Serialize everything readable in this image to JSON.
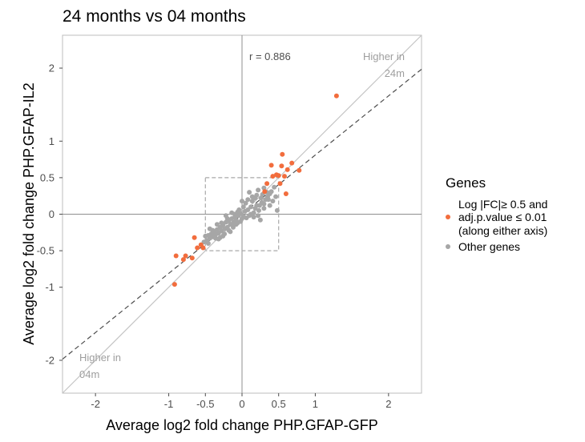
{
  "chart_data": {
    "type": "scatter",
    "title": "24 months vs 04 months",
    "xlabel": "Average log2 fold change PHP.GFAP-GFP",
    "ylabel": "Average log2 fold change PHP.GFAP-IL2",
    "xlim": [
      -2.45,
      2.45
    ],
    "ylim": [
      -2.45,
      2.45
    ],
    "x_ticks": [
      {
        "value": -2,
        "label": "-2"
      },
      {
        "value": -1,
        "label": "-1"
      },
      {
        "value": -0.5,
        "label": "-0.5"
      },
      {
        "value": 0,
        "label": "0"
      },
      {
        "value": 0.5,
        "label": "0.5"
      },
      {
        "value": 1,
        "label": "1"
      },
      {
        "value": 2,
        "label": "2"
      }
    ],
    "y_ticks": [
      {
        "value": -2,
        "label": "-2"
      },
      {
        "value": -1,
        "label": "-1"
      },
      {
        "value": -0.5,
        "label": "-0.5"
      },
      {
        "value": 0,
        "label": "0"
      },
      {
        "value": 0.5,
        "label": "0.5"
      },
      {
        "value": 1,
        "label": "1"
      },
      {
        "value": 2,
        "label": "2"
      }
    ],
    "annotations": {
      "correlation": "r = 0.886",
      "higher_24m": [
        "Higher in",
        "24m"
      ],
      "higher_04m": [
        "Higher in",
        "04m"
      ]
    },
    "reference_lines": {
      "identity_slope": 1,
      "fit_slope": 0.81,
      "threshold_box": [
        -0.5,
        0.5
      ]
    },
    "legend": {
      "title": "Genes",
      "position": "right",
      "entries": [
        {
          "label_lines": [
            "Log |FC|≥ 0.5 and",
            "adj.p.value ≤ 0.01",
            "(along either axis)"
          ],
          "color": "#f26d3d"
        },
        {
          "label_lines": [
            "Other genes"
          ],
          "color": "#a6a6a6"
        }
      ]
    },
    "colors": {
      "significant": "#f26d3d",
      "other": "#a6a6a6",
      "panel_border": "#bdbdbd",
      "zero_lines": "#8f8f8f"
    },
    "series": [
      {
        "name": "Log |FC|≥ 0.5 and adj.p.value ≤ 0.01 (along either axis)",
        "color": "#f26d3d",
        "points": [
          [
            1.29,
            1.62
          ],
          [
            0.55,
            0.82
          ],
          [
            0.68,
            0.7
          ],
          [
            0.4,
            0.67
          ],
          [
            0.54,
            0.66
          ],
          [
            0.62,
            0.61
          ],
          [
            0.78,
            0.6
          ],
          [
            0.47,
            0.54
          ],
          [
            0.42,
            0.52
          ],
          [
            0.5,
            0.53
          ],
          [
            0.58,
            0.52
          ],
          [
            0.52,
            0.42
          ],
          [
            0.34,
            0.42
          ],
          [
            0.6,
            0.28
          ],
          [
            0.31,
            0.31
          ],
          [
            -0.65,
            -0.32
          ],
          [
            -0.56,
            -0.42
          ],
          [
            -0.61,
            -0.46
          ],
          [
            -0.53,
            -0.46
          ],
          [
            -0.9,
            -0.57
          ],
          [
            -0.77,
            -0.57
          ],
          [
            -0.68,
            -0.6
          ],
          [
            -0.8,
            -0.62
          ],
          [
            -0.92,
            -0.96
          ]
        ]
      },
      {
        "name": "Other genes",
        "color": "#a6a6a6",
        "points": [
          [
            0.44,
            0.37
          ],
          [
            0.4,
            0.31
          ],
          [
            0.35,
            0.24
          ],
          [
            0.28,
            0.27
          ],
          [
            0.42,
            0.18
          ],
          [
            0.22,
            0.33
          ],
          [
            0.48,
            0.05
          ],
          [
            0.25,
            -0.08
          ],
          [
            0.3,
            0.08
          ],
          [
            0.38,
            0.12
          ],
          [
            0.32,
            0.2
          ],
          [
            0.18,
            0.22
          ],
          [
            0.2,
            0.12
          ],
          [
            0.27,
            0.16
          ],
          [
            0.14,
            0.18
          ],
          [
            0.23,
            0.05
          ],
          [
            0.12,
            0.1
          ],
          [
            0.16,
            0.02
          ],
          [
            0.05,
            0.15
          ],
          [
            0.08,
            0.06
          ],
          [
            0.1,
            -0.02
          ],
          [
            0.04,
            0.04
          ],
          [
            0.02,
            -0.03
          ],
          [
            -0.02,
            0.01
          ],
          [
            0.0,
            -0.06
          ],
          [
            -0.05,
            -0.02
          ],
          [
            -0.06,
            0.03
          ],
          [
            -0.08,
            -0.08
          ],
          [
            -0.1,
            -0.04
          ],
          [
            -0.12,
            -0.12
          ],
          [
            -0.14,
            -0.06
          ],
          [
            -0.16,
            -0.14
          ],
          [
            -0.18,
            -0.09
          ],
          [
            -0.2,
            -0.18
          ],
          [
            -0.22,
            -0.11
          ],
          [
            -0.24,
            -0.2
          ],
          [
            -0.26,
            -0.15
          ],
          [
            -0.28,
            -0.23
          ],
          [
            -0.3,
            -0.18
          ],
          [
            -0.32,
            -0.26
          ],
          [
            -0.34,
            -0.21
          ],
          [
            -0.36,
            -0.28
          ],
          [
            -0.38,
            -0.24
          ],
          [
            -0.4,
            -0.31
          ],
          [
            -0.42,
            -0.27
          ],
          [
            -0.44,
            -0.33
          ],
          [
            -0.46,
            -0.29
          ],
          [
            -0.48,
            -0.36
          ],
          [
            -0.5,
            -0.3
          ],
          [
            -0.52,
            -0.38
          ],
          [
            -0.36,
            -0.33
          ],
          [
            -0.3,
            -0.32
          ],
          [
            -0.24,
            -0.27
          ],
          [
            -0.18,
            -0.22
          ],
          [
            -0.12,
            -0.18
          ],
          [
            -0.06,
            -0.12
          ],
          [
            -0.2,
            -0.06
          ],
          [
            -0.28,
            -0.12
          ],
          [
            -0.34,
            -0.14
          ],
          [
            -0.1,
            0.0
          ],
          [
            0.06,
            -0.05
          ],
          [
            0.12,
            0.0
          ],
          [
            0.18,
            0.08
          ],
          [
            0.24,
            0.12
          ],
          [
            0.3,
            0.14
          ],
          [
            0.36,
            0.2
          ],
          [
            0.26,
            0.22
          ],
          [
            0.2,
            0.26
          ],
          [
            0.14,
            0.24
          ],
          [
            0.08,
            0.2
          ],
          [
            0.02,
            0.1
          ],
          [
            -0.04,
            0.06
          ],
          [
            -0.14,
            0.02
          ],
          [
            -0.22,
            -0.02
          ],
          [
            -0.08,
            -0.14
          ],
          [
            -0.16,
            -0.24
          ],
          [
            -0.26,
            -0.3
          ],
          [
            -0.4,
            -0.22
          ],
          [
            -0.44,
            -0.2
          ],
          [
            0.34,
            0.3
          ],
          [
            0.3,
            0.36
          ],
          [
            0.38,
            0.28
          ],
          [
            0.46,
            0.24
          ],
          [
            0.1,
            0.3
          ],
          [
            0.0,
            0.18
          ],
          [
            -0.02,
            -0.1
          ],
          [
            -0.32,
            -0.34
          ],
          [
            -0.46,
            -0.4
          ],
          [
            0.16,
            -0.04
          ],
          [
            0.22,
            -0.02
          ]
        ]
      }
    ]
  }
}
